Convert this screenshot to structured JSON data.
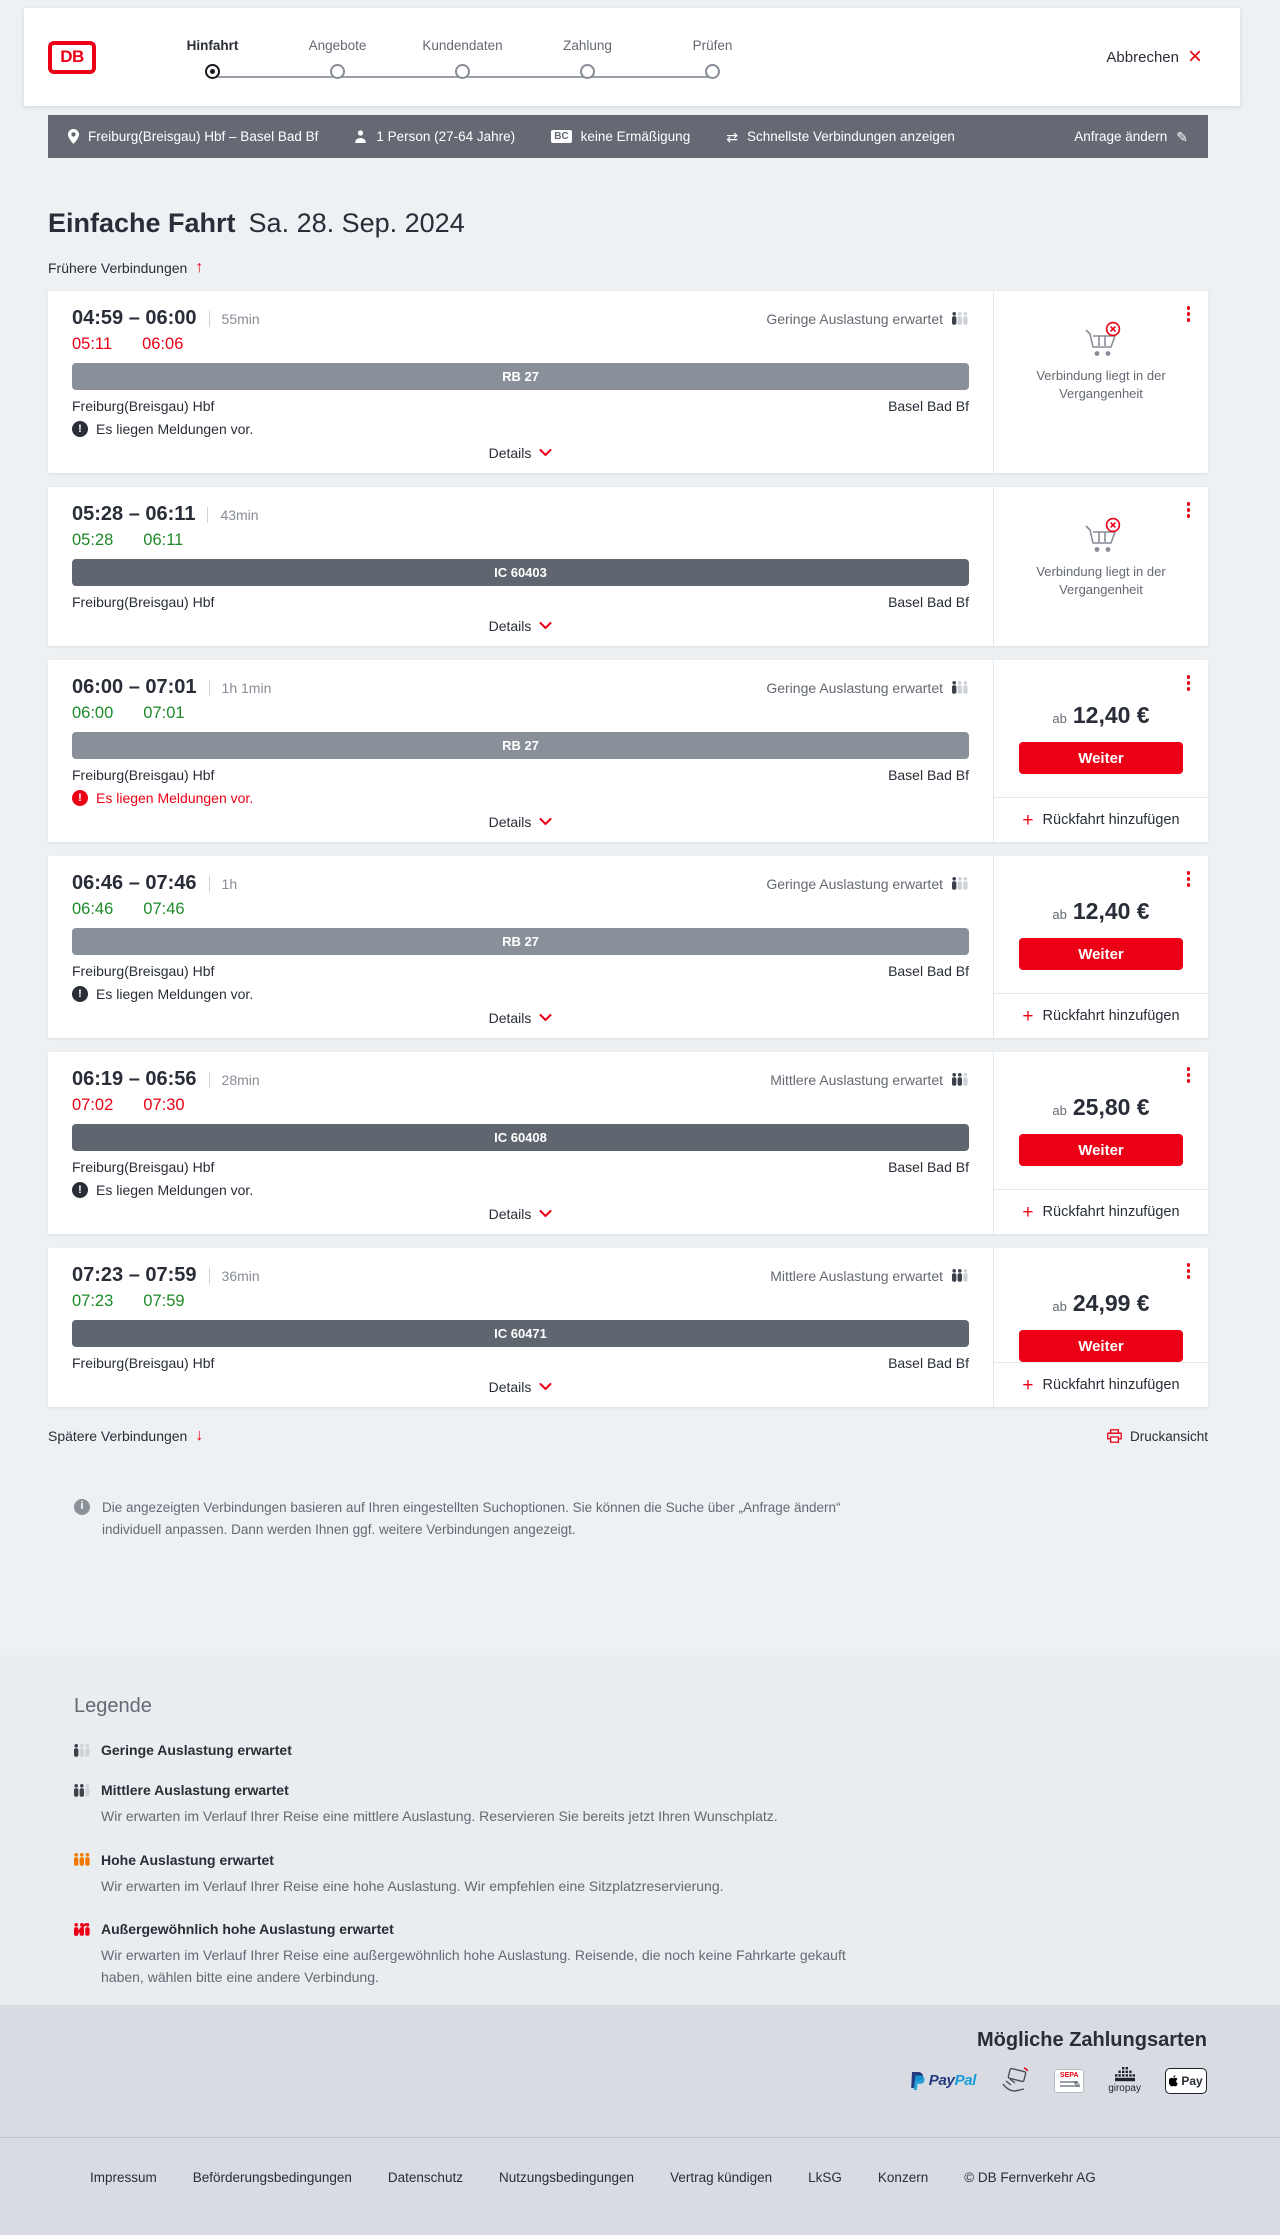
{
  "header": {
    "logo_text": "DB",
    "steps": [
      {
        "label": "Hinfahrt",
        "active": true
      },
      {
        "label": "Angebote",
        "active": false
      },
      {
        "label": "Kundendaten",
        "active": false
      },
      {
        "label": "Zahlung",
        "active": false
      },
      {
        "label": "Prüfen",
        "active": false
      }
    ],
    "cancel_label": "Abbrechen"
  },
  "searchbar": {
    "route": "Freiburg(Breisgau) Hbf – Basel Bad Bf",
    "passengers": "1 Person (27-64 Jahre)",
    "bc": "BC",
    "discount": "keine Ermäßigung",
    "speed": "Schnellste Verbindungen anzeigen",
    "edit_label": "Anfrage ändern"
  },
  "page": {
    "title": "Einfache Fahrt",
    "date": "Sa. 28. Sep. 2024",
    "earlier_label": "Frühere Verbindungen",
    "later_label": "Spätere Verbindungen",
    "print_label": "Druckansicht",
    "notice": "Die angezeigten Verbindungen basieren auf Ihren eingestellten Suchoptionen. Sie können die Suche über „Anfrage ändern“ individuell anpassen. Dann werden Ihnen ggf. weitere Verbindungen angezeigt."
  },
  "labels": {
    "details": "Details",
    "weiter": "Weiter",
    "return": "Rückfahrt hinzufügen",
    "price_prefix": "ab",
    "past": "Verbindung liegt in der Vergangenheit"
  },
  "icons": {
    "cancel_x": "×",
    "swap": "⇄",
    "pencil": "✎",
    "plus": "+",
    "up_arrow": "↑",
    "down_arrow": "↓",
    "alert": "!",
    "info": "i"
  },
  "connections": [
    {
      "times": "04:59 – 06:00",
      "duration": "55min",
      "departure": "05:11",
      "arrival": "06:06",
      "status": "delayed",
      "train": "RB 27",
      "train_type": "rb",
      "from": "Freiburg(Breisgau) Hbf",
      "to": "Basel Bad Bf",
      "occupancy": {
        "label": "Geringe Auslastung erwartet",
        "level": "low"
      },
      "message": {
        "text": "Es liegen Meldungen vor.",
        "severity": "info"
      },
      "offer": {
        "type": "past"
      }
    },
    {
      "times": "05:28 – 06:11",
      "duration": "43min",
      "departure": "05:28",
      "arrival": "06:11",
      "status": "ontime",
      "train": "IC 60403",
      "train_type": "ic",
      "from": "Freiburg(Breisgau) Hbf",
      "to": "Basel Bad Bf",
      "occupancy": null,
      "message": null,
      "offer": {
        "type": "past"
      }
    },
    {
      "times": "06:00 – 07:01",
      "duration": "1h 1min",
      "departure": "06:00",
      "arrival": "07:01",
      "status": "ontime",
      "train": "RB 27",
      "train_type": "rb",
      "from": "Freiburg(Breisgau) Hbf",
      "to": "Basel Bad Bf",
      "occupancy": {
        "label": "Geringe Auslastung erwartet",
        "level": "low"
      },
      "message": {
        "text": "Es liegen Meldungen vor.",
        "severity": "alert"
      },
      "offer": {
        "type": "price",
        "price": "12,40 €"
      }
    },
    {
      "times": "06:46 – 07:46",
      "duration": "1h",
      "departure": "06:46",
      "arrival": "07:46",
      "status": "ontime",
      "train": "RB 27",
      "train_type": "rb",
      "from": "Freiburg(Breisgau) Hbf",
      "to": "Basel Bad Bf",
      "occupancy": {
        "label": "Geringe Auslastung erwartet",
        "level": "low"
      },
      "message": {
        "text": "Es liegen Meldungen vor.",
        "severity": "info"
      },
      "offer": {
        "type": "price",
        "price": "12,40 €"
      }
    },
    {
      "times": "06:19 – 06:56",
      "duration": "28min",
      "departure": "07:02",
      "arrival": "07:30",
      "status": "delayed",
      "train": "IC 60408",
      "train_type": "ic",
      "from": "Freiburg(Breisgau) Hbf",
      "to": "Basel Bad Bf",
      "occupancy": {
        "label": "Mittlere Auslastung erwartet",
        "level": "mid"
      },
      "message": {
        "text": "Es liegen Meldungen vor.",
        "severity": "info"
      },
      "offer": {
        "type": "price",
        "price": "25,80 €"
      }
    },
    {
      "times": "07:23 – 07:59",
      "duration": "36min",
      "departure": "07:23",
      "arrival": "07:59",
      "status": "ontime",
      "train": "IC 60471",
      "train_type": "ic",
      "from": "Freiburg(Breisgau) Hbf",
      "to": "Basel Bad Bf",
      "occupancy": {
        "label": "Mittlere Auslastung erwartet",
        "level": "mid"
      },
      "message": null,
      "offer": {
        "type": "price",
        "price": "24,99 €"
      }
    }
  ],
  "legend": {
    "title": "Legende",
    "items": [
      {
        "level": "low",
        "label": "Geringe Auslastung erwartet",
        "desc": ""
      },
      {
        "level": "mid",
        "label": "Mittlere Auslastung erwartet",
        "desc": "Wir erwarten im Verlauf Ihrer Reise eine mittlere Auslastung. Reservieren Sie bereits jetzt Ihren Wunschplatz."
      },
      {
        "level": "high",
        "label": "Hohe Auslastung erwartet",
        "desc": "Wir erwarten im Verlauf Ihrer Reise eine hohe Auslastung. Wir empfehlen eine Sitzplatzreservierung."
      },
      {
        "level": "exceptional",
        "label": "Außergewöhnlich hohe Auslastung erwartet",
        "desc": "Wir erwarten im Verlauf Ihrer Reise eine außergewöhnlich hohe Auslastung. Reisende, die noch keine Fahrkarte gekauft haben, wählen bitte eine andere Verbindung."
      }
    ]
  },
  "payments": {
    "title": "Mögliche Zahlungsarten",
    "icons": {
      "paypal1": "Pay",
      "paypal2": "Pal",
      "sepa": "SEPA",
      "giropay": "giropay",
      "applepay": "Pay"
    }
  },
  "footer": {
    "links": [
      "Impressum",
      "Beförderungsbedingungen",
      "Datenschutz",
      "Nutzungsbedingungen",
      "Vertrag kündigen",
      "LkSG",
      "Konzern"
    ],
    "copyright": "© DB Fernverkehr AG"
  },
  "colors": {
    "accent": "#ec0016",
    "green": "#1e8a28",
    "dark": "#282d37",
    "gray": "#646973",
    "bar_rb": "#8a9099",
    "bar_ic": "#60666f"
  }
}
